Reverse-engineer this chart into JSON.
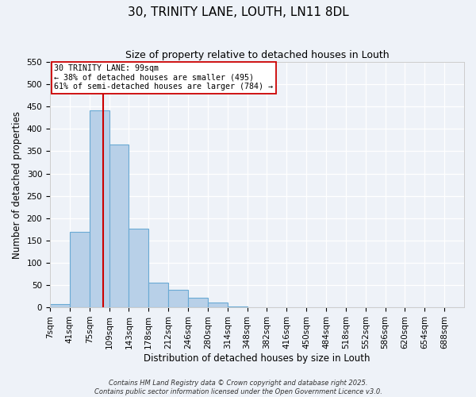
{
  "title_line1": "30, TRINITY LANE, LOUTH, LN11 8DL",
  "title_line2": "Size of property relative to detached houses in Louth",
  "xlabel": "Distribution of detached houses by size in Louth",
  "ylabel": "Number of detached properties",
  "bin_labels": [
    "7sqm",
    "41sqm",
    "75sqm",
    "109sqm",
    "143sqm",
    "178sqm",
    "212sqm",
    "246sqm",
    "280sqm",
    "314sqm",
    "348sqm",
    "382sqm",
    "416sqm",
    "450sqm",
    "484sqm",
    "518sqm",
    "552sqm",
    "586sqm",
    "620sqm",
    "654sqm",
    "688sqm"
  ],
  "bar_values": [
    8,
    170,
    442,
    365,
    176,
    55,
    40,
    22,
    10,
    2,
    0,
    0,
    0,
    0,
    0,
    0,
    0,
    0,
    0,
    0,
    0
  ],
  "bar_color": "#b8d0e8",
  "bar_edge_color": "#6aaad4",
  "ylim": [
    0,
    550
  ],
  "yticks": [
    0,
    50,
    100,
    150,
    200,
    250,
    300,
    350,
    400,
    450,
    500,
    550
  ],
  "vline_color": "#cc0000",
  "annotation_title": "30 TRINITY LANE: 99sqm",
  "annotation_line2": "← 38% of detached houses are smaller (495)",
  "annotation_line3": "61% of semi-detached houses are larger (784) →",
  "annotation_box_color": "#ffffff",
  "annotation_box_edge": "#cc0000",
  "footer_line1": "Contains HM Land Registry data © Crown copyright and database right 2025.",
  "footer_line2": "Contains public sector information licensed under the Open Government Licence v3.0.",
  "background_color": "#eef2f8",
  "grid_color": "#ffffff",
  "title_fontsize": 11,
  "subtitle_fontsize": 9,
  "axis_label_fontsize": 8.5,
  "tick_fontsize": 7.5,
  "footer_fontsize": 6.0
}
